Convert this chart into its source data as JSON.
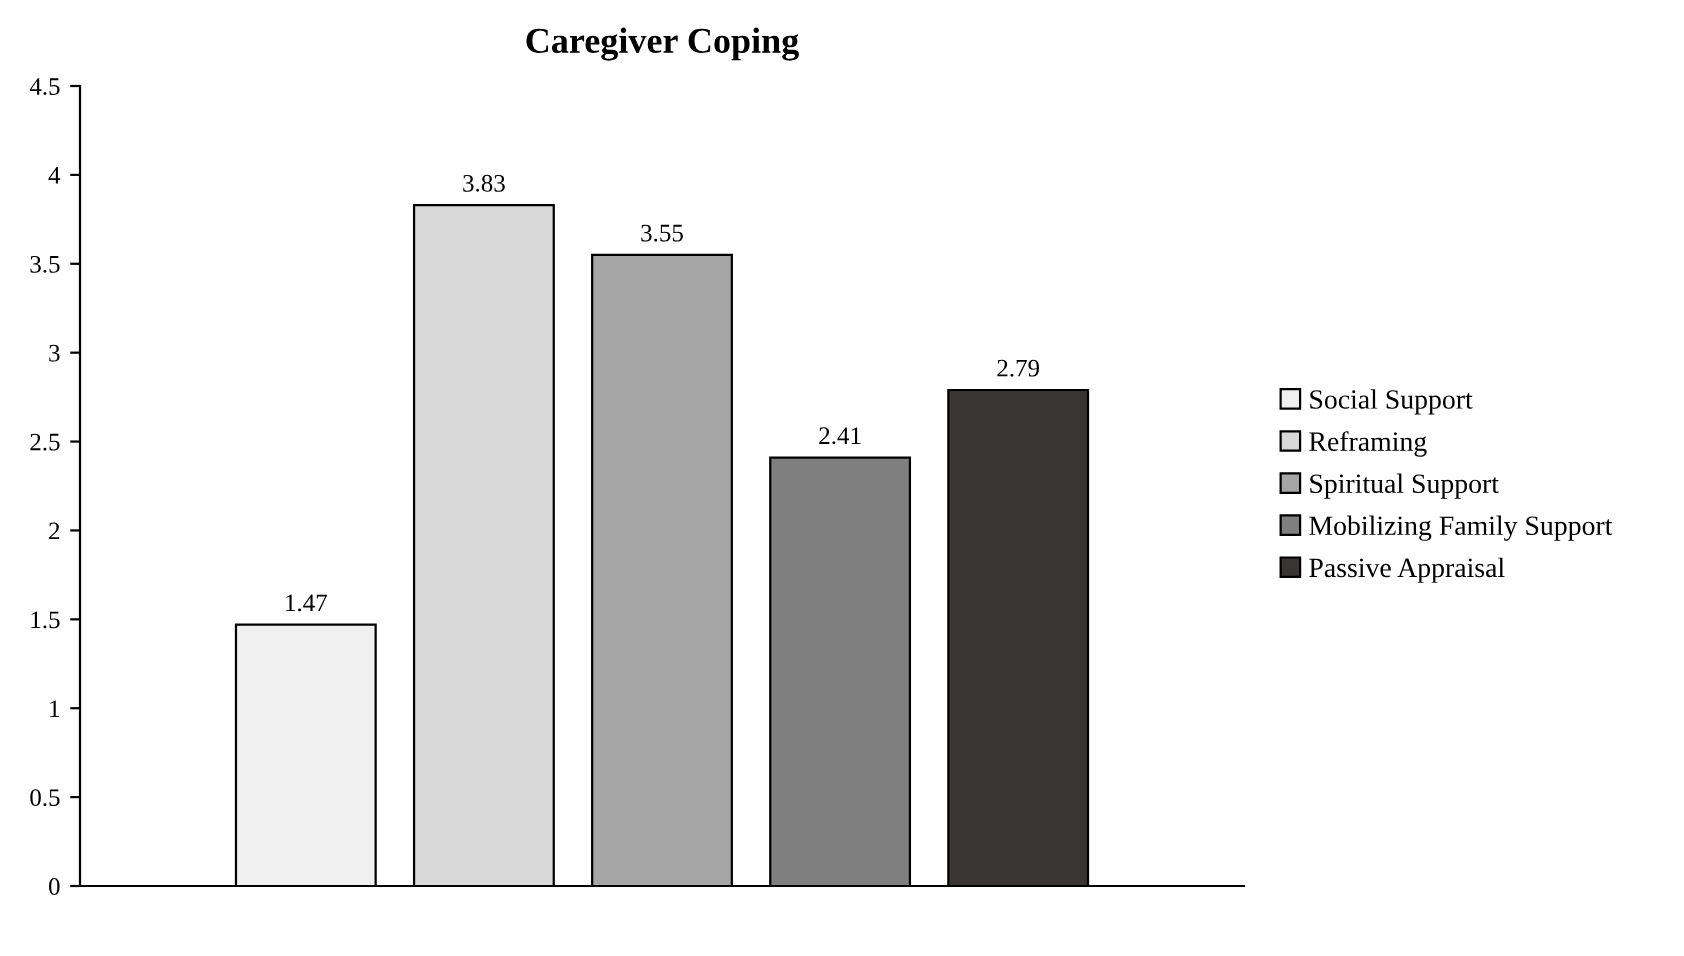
{
  "chart_data": {
    "type": "bar",
    "title": "Caregiver Coping",
    "categories": [
      null
    ],
    "series": [
      {
        "name": "Social Support",
        "color": "#f0f0f0",
        "values": [
          1.47
        ]
      },
      {
        "name": "Reframing",
        "color": "#d9d9d9",
        "values": [
          3.83
        ]
      },
      {
        "name": "Spiritual Support",
        "color": "#a6a6a6",
        "values": [
          3.55
        ]
      },
      {
        "name": "Mobilizing Family Support",
        "color": "#7f7f7f",
        "values": [
          2.41
        ]
      },
      {
        "name": "Passive Appraisal",
        "color": "#3a3535",
        "values": [
          2.79
        ]
      }
    ],
    "ylim": [
      0,
      4.5
    ],
    "yticks": [
      0,
      0.5,
      1,
      1.5,
      2,
      2.5,
      3,
      3.5,
      4,
      4.5
    ],
    "grid": false,
    "legend": "right",
    "data_labels": true
  }
}
